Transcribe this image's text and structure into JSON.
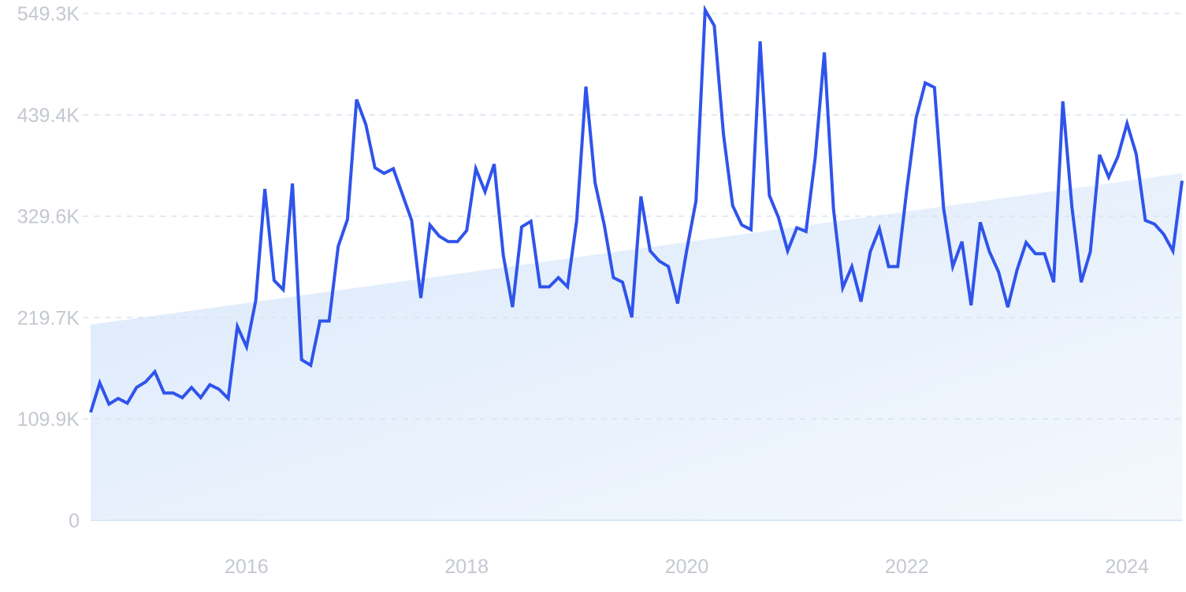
{
  "chart_data": {
    "type": "line",
    "title": "",
    "xlabel": "",
    "ylabel": "",
    "grid": true,
    "ylim": [
      0,
      549300
    ],
    "xlim": [
      "2014-08",
      "2024-07"
    ],
    "y_ticks": [
      {
        "value": 0,
        "label": "0"
      },
      {
        "value": 109900,
        "label": "109.9K"
      },
      {
        "value": 219700,
        "label": "219.7K"
      },
      {
        "value": 329600,
        "label": "329.6K"
      },
      {
        "value": 439400,
        "label": "439.4K"
      },
      {
        "value": 549300,
        "label": "549.3K"
      }
    ],
    "x_ticks": [
      {
        "value": "2016-01",
        "label": "2016"
      },
      {
        "value": "2018-01",
        "label": "2018"
      },
      {
        "value": "2020-01",
        "label": "2020"
      },
      {
        "value": "2022-01",
        "label": "2022"
      },
      {
        "value": "2024-01",
        "label": "2024"
      }
    ],
    "series": [
      {
        "type": "line",
        "color": "#2f54eb",
        "x": [
          "2014-08",
          "2014-09",
          "2014-10",
          "2014-11",
          "2014-12",
          "2015-01",
          "2015-02",
          "2015-03",
          "2015-04",
          "2015-05",
          "2015-06",
          "2015-07",
          "2015-08",
          "2015-09",
          "2015-10",
          "2015-11",
          "2015-12",
          "2016-01",
          "2016-02",
          "2016-03",
          "2016-04",
          "2016-05",
          "2016-06",
          "2016-07",
          "2016-08",
          "2016-09",
          "2016-10",
          "2016-11",
          "2016-12",
          "2017-01",
          "2017-02",
          "2017-03",
          "2017-04",
          "2017-05",
          "2017-06",
          "2017-07",
          "2017-08",
          "2017-09",
          "2017-10",
          "2017-11",
          "2017-12",
          "2018-01",
          "2018-02",
          "2018-03",
          "2018-04",
          "2018-05",
          "2018-06",
          "2018-07",
          "2018-08",
          "2018-09",
          "2018-10",
          "2018-11",
          "2018-12",
          "2019-01",
          "2019-02",
          "2019-03",
          "2019-04",
          "2019-05",
          "2019-06",
          "2019-07",
          "2019-08",
          "2019-09",
          "2019-10",
          "2019-11",
          "2019-12",
          "2020-01",
          "2020-02",
          "2020-03",
          "2020-04",
          "2020-05",
          "2020-06",
          "2020-07",
          "2020-08",
          "2020-09",
          "2020-10",
          "2020-11",
          "2020-12",
          "2021-01",
          "2021-02",
          "2021-03",
          "2021-04",
          "2021-05",
          "2021-06",
          "2021-07",
          "2021-08",
          "2021-09",
          "2021-10",
          "2021-11",
          "2021-12",
          "2022-01",
          "2022-02",
          "2022-03",
          "2022-04",
          "2022-05",
          "2022-06",
          "2022-07",
          "2022-08",
          "2022-09",
          "2022-10",
          "2022-11",
          "2022-12",
          "2023-01",
          "2023-02",
          "2023-03",
          "2023-04",
          "2023-05",
          "2023-06",
          "2023-07",
          "2023-08",
          "2023-09",
          "2023-10",
          "2023-11",
          "2023-12",
          "2024-01",
          "2024-02",
          "2024-03",
          "2024-04",
          "2024-05",
          "2024-06",
          "2024-07"
        ],
        "y": [
          117000,
          149000,
          126000,
          132000,
          127000,
          144000,
          150000,
          161000,
          138000,
          138000,
          133000,
          144000,
          133000,
          147000,
          142000,
          132000,
          210000,
          188000,
          238000,
          359000,
          260000,
          250000,
          365000,
          174000,
          168000,
          216000,
          216000,
          297000,
          326000,
          456000,
          429000,
          382000,
          376000,
          381000,
          353000,
          325000,
          241000,
          320000,
          308000,
          302000,
          302000,
          314000,
          381000,
          356000,
          386000,
          287000,
          231000,
          318000,
          324000,
          253000,
          253000,
          263000,
          253000,
          325000,
          470000,
          366000,
          320000,
          263000,
          258000,
          220000,
          351000,
          292000,
          281000,
          275000,
          235000,
          293000,
          346000,
          553000,
          536000,
          418000,
          341000,
          320000,
          315000,
          519000,
          352000,
          328000,
          292000,
          317000,
          313000,
          393000,
          507000,
          337000,
          252000,
          275000,
          237000,
          291000,
          316000,
          275000,
          275000,
          359000,
          436000,
          474000,
          469000,
          338000,
          275000,
          302000,
          233000,
          323000,
          291000,
          269000,
          231000,
          271000,
          301000,
          289000,
          289000,
          258000,
          454000,
          339000,
          258000,
          291000,
          396000,
          372000,
          394000,
          430000,
          397000,
          325000,
          321000,
          310000,
          292000,
          368000
        ]
      }
    ],
    "trend": {
      "type": "area",
      "x": [
        "2014-08",
        "2024-07"
      ],
      "y": [
        212000,
        376000
      ],
      "colors": [
        "#dbe9fb",
        "#f4f8fd"
      ]
    }
  }
}
